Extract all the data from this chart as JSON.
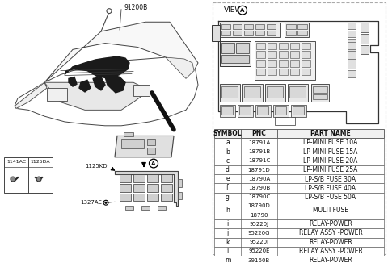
{
  "label_91200B": "91200B",
  "label_1125KD": "1125KD",
  "label_1327AE": "1327AE",
  "label_1141AC": "1141AC",
  "label_1125DA": "1125DA",
  "view_label": "VIEW",
  "dashed_border_color": "#aaaaaa",
  "table_border_color": "#666666",
  "table_data": {
    "headers": [
      "SYMBOL",
      "PNC",
      "PART NAME"
    ],
    "rows": [
      [
        "a",
        "18791A",
        "LP-MINI FUSE 10A"
      ],
      [
        "b",
        "18791B",
        "LP-MINI FUSE 15A"
      ],
      [
        "c",
        "18791C",
        "LP-MINI FUSE 20A"
      ],
      [
        "d",
        "18791D",
        "LP-MINI FUSE 25A"
      ],
      [
        "e",
        "18790A",
        "LP-S/B FUSE 30A"
      ],
      [
        "f",
        "18790B",
        "LP-S/B FUSE 40A"
      ],
      [
        "g",
        "18790C",
        "LP-S/B FUSE 50A"
      ],
      [
        "h",
        "18790D\n18790",
        "MULTI FUSE"
      ],
      [
        "i",
        "95220J",
        "RELAY-POWER"
      ],
      [
        "j",
        "95220G",
        "RELAY ASSY -POWER"
      ],
      [
        "k",
        "95220I",
        "RELAY-POWER"
      ],
      [
        "l",
        "95220E",
        "RELAY ASSY -POWER"
      ],
      [
        "m",
        "39160B",
        "RELAY-POWER"
      ]
    ]
  }
}
